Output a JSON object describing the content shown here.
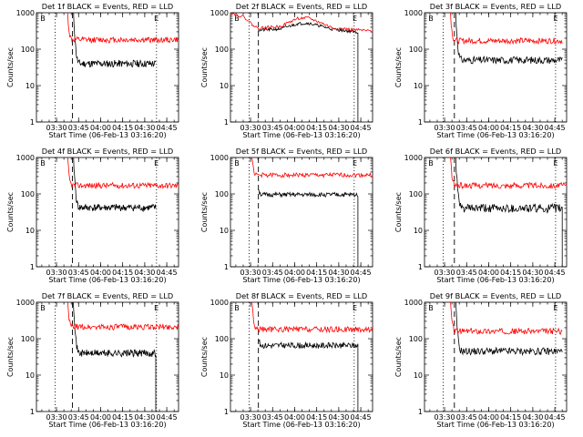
{
  "chart_data": [
    {
      "type": "line",
      "scale": "log",
      "ylim": [
        1,
        1000
      ],
      "xlim_hhmm": [
        "03:16:20",
        "04:53:00"
      ],
      "title": "Det 1f BLACK = Events, RED = LLD",
      "xlabel": "Start Time (06-Feb-13 03:16:20)",
      "ylabel": "Counts/sec",
      "xticks": [
        "03:30",
        "03:45",
        "04:00",
        "04:15",
        "04:30",
        "04:45"
      ],
      "yticks": [
        "1",
        "10",
        "100",
        "1000"
      ],
      "markers": {
        "b": {
          "label": "B",
          "time": "03:19:00"
        },
        "e": {
          "label": "E",
          "time": "04:36:20"
        },
        "dotted": [
          "03:29:00",
          "04:38:00"
        ],
        "dashed": "03:40:50"
      },
      "series": [
        {
          "color": "#000000",
          "start": "03:41:30",
          "end": "04:37:30",
          "level": 40,
          "spike": 1000,
          "noise": 0.05,
          "seed": 11,
          "drop": false
        },
        {
          "color": "#ff0000",
          "start": "03:37:30",
          "end": "04:53:00",
          "level": 180,
          "spike": 1000,
          "noise": 0.04,
          "seed": 12,
          "drop": false
        }
      ]
    },
    {
      "type": "line",
      "scale": "log",
      "ylim": [
        1,
        1000
      ],
      "xlim_hhmm": [
        "03:16:20",
        "04:53:00"
      ],
      "title": "Det 2f BLACK = Events, RED = LLD",
      "xlabel": "Start Time (06-Feb-13 03:16:20)",
      "ylabel": "Counts/sec",
      "xticks": [
        "03:30",
        "03:45",
        "04:00",
        "04:15",
        "04:30",
        "04:45"
      ],
      "yticks": [
        "1",
        "10",
        "100",
        "1000"
      ],
      "markers": {
        "b": {
          "label": "B",
          "time": "03:19:00"
        },
        "e": {
          "label": "E",
          "time": "04:39:20"
        },
        "dotted": [
          "03:29:00",
          "04:40:30"
        ],
        "dashed": "03:35:20"
      },
      "series": [
        {
          "color": "#000000",
          "start": "03:35:30",
          "end": "04:43:00",
          "level": 300,
          "spike": 360,
          "noise": 0.02,
          "seed": 21,
          "drop": true,
          "profile": [
            [
              "03:35:30",
              330
            ],
            [
              "03:50:00",
              360
            ],
            [
              "04:02:00",
              500
            ],
            [
              "04:09:00",
              520
            ],
            [
              "04:17:00",
              440
            ],
            [
              "04:25:00",
              360
            ],
            [
              "04:43:00",
              290
            ]
          ]
        },
        {
          "color": "#ff0000",
          "start": "03:16:20",
          "end": "04:53:00",
          "level": 300,
          "spike": 1000,
          "noise": 0.02,
          "seed": 22,
          "drop": false,
          "profile": [
            [
              "03:16:20",
              1000
            ],
            [
              "03:26:00",
              750
            ],
            [
              "03:32:30",
              420
            ],
            [
              "03:36:00",
              380
            ],
            [
              "03:50:00",
              420
            ],
            [
              "04:02:00",
              700
            ],
            [
              "04:09:00",
              720
            ],
            [
              "04:17:00",
              550
            ],
            [
              "04:26:00",
              380
            ],
            [
              "04:53:00",
              310
            ]
          ]
        }
      ]
    },
    {
      "type": "line",
      "scale": "log",
      "ylim": [
        1,
        1000
      ],
      "xlim_hhmm": [
        "03:16:20",
        "04:53:00"
      ],
      "title": "Det 3f BLACK = Events, RED = LLD",
      "xlabel": "Start Time (06-Feb-13 03:16:20)",
      "ylabel": "Counts/sec",
      "xticks": [
        "03:30",
        "03:45",
        "04:00",
        "04:15",
        "04:30",
        "04:45"
      ],
      "yticks": [
        "1",
        "10",
        "100",
        "1000"
      ],
      "markers": {
        "b": {
          "label": "B",
          "time": "03:19:00"
        },
        "e": {
          "label": "E",
          "time": "04:44:00"
        },
        "dotted": [
          "03:29:00",
          "04:45:30"
        ],
        "dashed": "03:36:40"
      },
      "series": [
        {
          "color": "#000000",
          "start": "03:37:30",
          "end": "04:50:00",
          "level": 50,
          "spike": 1000,
          "noise": 0.05,
          "seed": 31,
          "drop": false
        },
        {
          "color": "#ff0000",
          "start": "03:34:00",
          "end": "04:50:00",
          "level": 170,
          "spike": 1000,
          "noise": 0.04,
          "seed": 32,
          "drop": false
        }
      ]
    },
    {
      "type": "line",
      "scale": "log",
      "ylim": [
        1,
        1000
      ],
      "xlim_hhmm": [
        "03:16:20",
        "04:53:00"
      ],
      "title": "Det 4f BLACK = Events, RED = LLD",
      "xlabel": "Start Time (06-Feb-13 03:16:20)",
      "ylabel": "Counts/sec",
      "xticks": [
        "03:30",
        "03:45",
        "04:00",
        "04:15",
        "04:30",
        "04:45"
      ],
      "yticks": [
        "1",
        "10",
        "100",
        "1000"
      ],
      "markers": {
        "b": {
          "label": "B",
          "time": "03:19:00"
        },
        "e": {
          "label": "E",
          "time": "04:36:20"
        },
        "dotted": [
          "03:29:00",
          "04:38:00"
        ],
        "dashed": "03:40:50"
      },
      "series": [
        {
          "color": "#000000",
          "start": "03:41:30",
          "end": "04:37:30",
          "level": 42,
          "spike": 1000,
          "noise": 0.05,
          "seed": 41,
          "drop": false
        },
        {
          "color": "#ff0000",
          "start": "03:37:30",
          "end": "04:53:00",
          "level": 170,
          "spike": 1000,
          "noise": 0.04,
          "seed": 42,
          "drop": false
        }
      ]
    },
    {
      "type": "line",
      "scale": "log",
      "ylim": [
        1,
        1000
      ],
      "xlim_hhmm": [
        "03:16:20",
        "04:53:00"
      ],
      "title": "Det 5f BLACK = Events, RED = LLD",
      "xlabel": "Start Time (06-Feb-13 03:16:20)",
      "ylabel": "Counts/sec",
      "xticks": [
        "03:30",
        "03:45",
        "04:00",
        "04:15",
        "04:30",
        "04:45"
      ],
      "yticks": [
        "1",
        "10",
        "100",
        "1000"
      ],
      "markers": {
        "b": {
          "label": "B",
          "time": "03:19:00"
        },
        "e": {
          "label": "E",
          "time": "04:39:20"
        },
        "dotted": [
          "03:29:00",
          "04:40:30"
        ],
        "dashed": "03:35:20"
      },
      "series": [
        {
          "color": "#000000",
          "start": "03:35:40",
          "end": "04:43:00",
          "level": 95,
          "spike": 130,
          "noise": 0.03,
          "seed": 51,
          "drop": true
        },
        {
          "color": "#ff0000",
          "start": "03:31:00",
          "end": "04:53:00",
          "level": 330,
          "spike": 1000,
          "noise": 0.03,
          "seed": 52,
          "drop": false
        }
      ]
    },
    {
      "type": "line",
      "scale": "log",
      "ylim": [
        1,
        1000
      ],
      "xlim_hhmm": [
        "03:16:20",
        "04:53:00"
      ],
      "title": "Det 6f BLACK = Events, RED = LLD",
      "xlabel": "Start Time (06-Feb-13 03:16:20)",
      "ylabel": "Counts/sec",
      "xticks": [
        "03:30",
        "03:45",
        "04:00",
        "04:15",
        "04:30",
        "04:45"
      ],
      "yticks": [
        "1",
        "10",
        "100",
        "1000"
      ],
      "markers": {
        "b": {
          "label": "B",
          "time": "03:19:00"
        },
        "e": {
          "label": "E",
          "time": "04:44:00"
        },
        "dotted": [
          "03:29:00",
          "04:45:30"
        ],
        "dashed": "03:36:40"
      },
      "series": [
        {
          "color": "#000000",
          "start": "03:37:30",
          "end": "04:50:00",
          "level": 40,
          "spike": 1000,
          "noise": 0.06,
          "seed": 61,
          "drop": true
        },
        {
          "color": "#ff0000",
          "start": "03:34:00",
          "end": "04:53:00",
          "level": 170,
          "spike": 1000,
          "noise": 0.04,
          "seed": 62,
          "drop": false
        }
      ]
    },
    {
      "type": "line",
      "scale": "log",
      "ylim": [
        1,
        1000
      ],
      "xlim_hhmm": [
        "03:16:20",
        "04:53:00"
      ],
      "title": "Det 7f BLACK = Events, RED = LLD",
      "xlabel": "Start Time (06-Feb-13 03:16:20)",
      "ylabel": "Counts/sec",
      "xticks": [
        "03:30",
        "03:45",
        "04:00",
        "04:15",
        "04:30",
        "04:45"
      ],
      "yticks": [
        "1",
        "10",
        "100",
        "1000"
      ],
      "markers": {
        "b": {
          "label": "B",
          "time": "03:19:00"
        },
        "e": {
          "label": "E",
          "time": "04:36:20"
        },
        "dotted": [
          "03:29:00",
          "04:38:00"
        ],
        "dashed": "03:40:50"
      },
      "series": [
        {
          "color": "#000000",
          "start": "03:41:30",
          "end": "04:37:30",
          "level": 40,
          "spike": 1000,
          "noise": 0.05,
          "seed": 71,
          "drop": true
        },
        {
          "color": "#ff0000",
          "start": "03:37:30",
          "end": "04:53:00",
          "level": 210,
          "spike": 1000,
          "noise": 0.04,
          "seed": 72,
          "drop": false
        }
      ]
    },
    {
      "type": "line",
      "scale": "log",
      "ylim": [
        1,
        1000
      ],
      "xlim_hhmm": [
        "03:16:20",
        "04:53:00"
      ],
      "title": "Det 8f BLACK = Events, RED = LLD",
      "xlabel": "Start Time (06-Feb-13 03:16:20)",
      "ylabel": "Counts/sec",
      "xticks": [
        "03:30",
        "03:45",
        "04:00",
        "04:15",
        "04:30",
        "04:45"
      ],
      "yticks": [
        "1",
        "10",
        "100",
        "1000"
      ],
      "markers": {
        "b": {
          "label": "B",
          "time": "03:19:00"
        },
        "e": {
          "label": "E",
          "time": "04:39:20"
        },
        "dotted": [
          "03:29:00",
          "04:40:30"
        ],
        "dashed": "03:35:20"
      },
      "series": [
        {
          "color": "#000000",
          "start": "03:35:40",
          "end": "04:43:00",
          "level": 65,
          "spike": 90,
          "noise": 0.04,
          "seed": 81,
          "drop": true
        },
        {
          "color": "#ff0000",
          "start": "03:31:00",
          "end": "04:53:00",
          "level": 180,
          "spike": 1000,
          "noise": 0.04,
          "seed": 82,
          "drop": false
        }
      ]
    },
    {
      "type": "line",
      "scale": "log",
      "ylim": [
        1,
        1000
      ],
      "xlim_hhmm": [
        "03:16:20",
        "04:53:00"
      ],
      "title": "Det 9f BLACK = Events, RED = LLD",
      "xlabel": "Start Time (06-Feb-13 03:16:20)",
      "ylabel": "Counts/sec",
      "xticks": [
        "03:30",
        "03:45",
        "04:00",
        "04:15",
        "04:30",
        "04:45"
      ],
      "yticks": [
        "1",
        "10",
        "100",
        "1000"
      ],
      "markers": {
        "b": {
          "label": "B",
          "time": "03:19:00"
        },
        "e": {
          "label": "E",
          "time": "04:44:00"
        },
        "dotted": [
          "03:29:00",
          "04:45:30"
        ],
        "dashed": "03:36:40"
      },
      "series": [
        {
          "color": "#000000",
          "start": "03:37:30",
          "end": "04:50:00",
          "level": 45,
          "spike": 1000,
          "noise": 0.05,
          "seed": 91,
          "drop": false
        },
        {
          "color": "#ff0000",
          "start": "03:34:00",
          "end": "04:50:00",
          "level": 160,
          "spike": 1000,
          "noise": 0.04,
          "seed": 92,
          "drop": false
        }
      ]
    }
  ]
}
